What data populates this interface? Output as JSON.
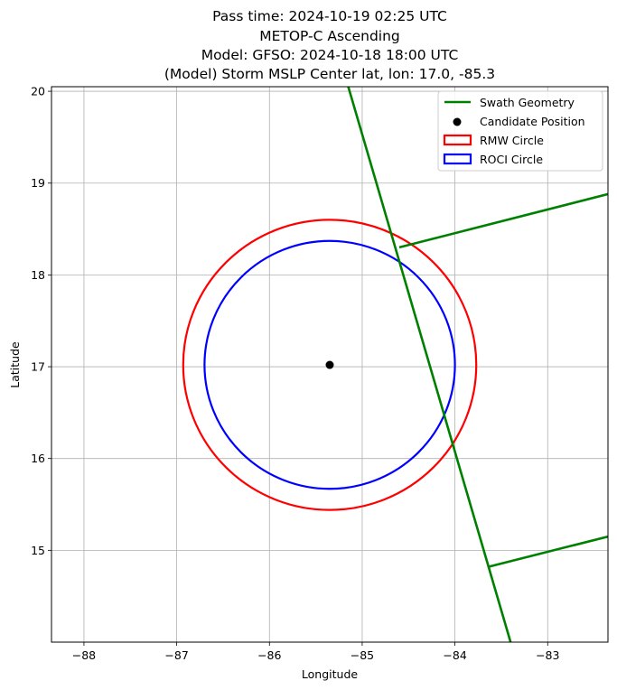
{
  "chart_data": {
    "type": "scatter",
    "title_lines": [
      "Pass time: 2024-10-19 02:25 UTC",
      "METOP-C Ascending",
      "Model: GFSO: 2024-10-18 18:00 UTC",
      "(Model) Storm MSLP Center lat, lon: 17.0, -85.3"
    ],
    "xlabel": "Longitude",
    "ylabel": "Latitude",
    "xlim": [
      -88.35,
      -82.35
    ],
    "ylim": [
      14.0,
      20.05
    ],
    "xticks": [
      -88,
      -87,
      -86,
      -85,
      -84,
      -83
    ],
    "xtick_labels": [
      "−88",
      "−87",
      "−86",
      "−85",
      "−84",
      "−83"
    ],
    "yticks": [
      15,
      16,
      17,
      18,
      19,
      20
    ],
    "ytick_labels": [
      "15",
      "16",
      "17",
      "18",
      "19",
      "20"
    ],
    "grid": true,
    "legend_position": "top-right",
    "legend": [
      {
        "label": "Swath Geometry",
        "kind": "line",
        "color": "#008000"
      },
      {
        "label": "Candidate Position",
        "kind": "point",
        "color": "#000000"
      },
      {
        "label": "RMW Circle",
        "kind": "patch",
        "color": "#ff0000"
      },
      {
        "label": "ROCI Circle",
        "kind": "patch",
        "color": "#0000ff"
      }
    ],
    "swath_segments": [
      {
        "name": "swath-track-edge",
        "points": [
          [
            -85.15,
            20.05
          ],
          [
            -83.4,
            14.0
          ]
        ]
      },
      {
        "name": "swath-upper-edge",
        "points": [
          [
            -84.6,
            18.3
          ],
          [
            -82.35,
            18.88
          ]
        ]
      },
      {
        "name": "swath-lower-edge",
        "points": [
          [
            -83.64,
            14.82
          ],
          [
            -82.35,
            15.15
          ]
        ]
      }
    ],
    "candidate_position": {
      "lon": -85.35,
      "lat": 17.02
    },
    "rmw_circle": {
      "center": [
        -85.35,
        17.02
      ],
      "radius_deg": 1.58,
      "color": "#ff0000"
    },
    "roci_circle": {
      "center": [
        -85.35,
        17.02
      ],
      "radius_deg": 1.35,
      "color": "#0000ff"
    }
  }
}
